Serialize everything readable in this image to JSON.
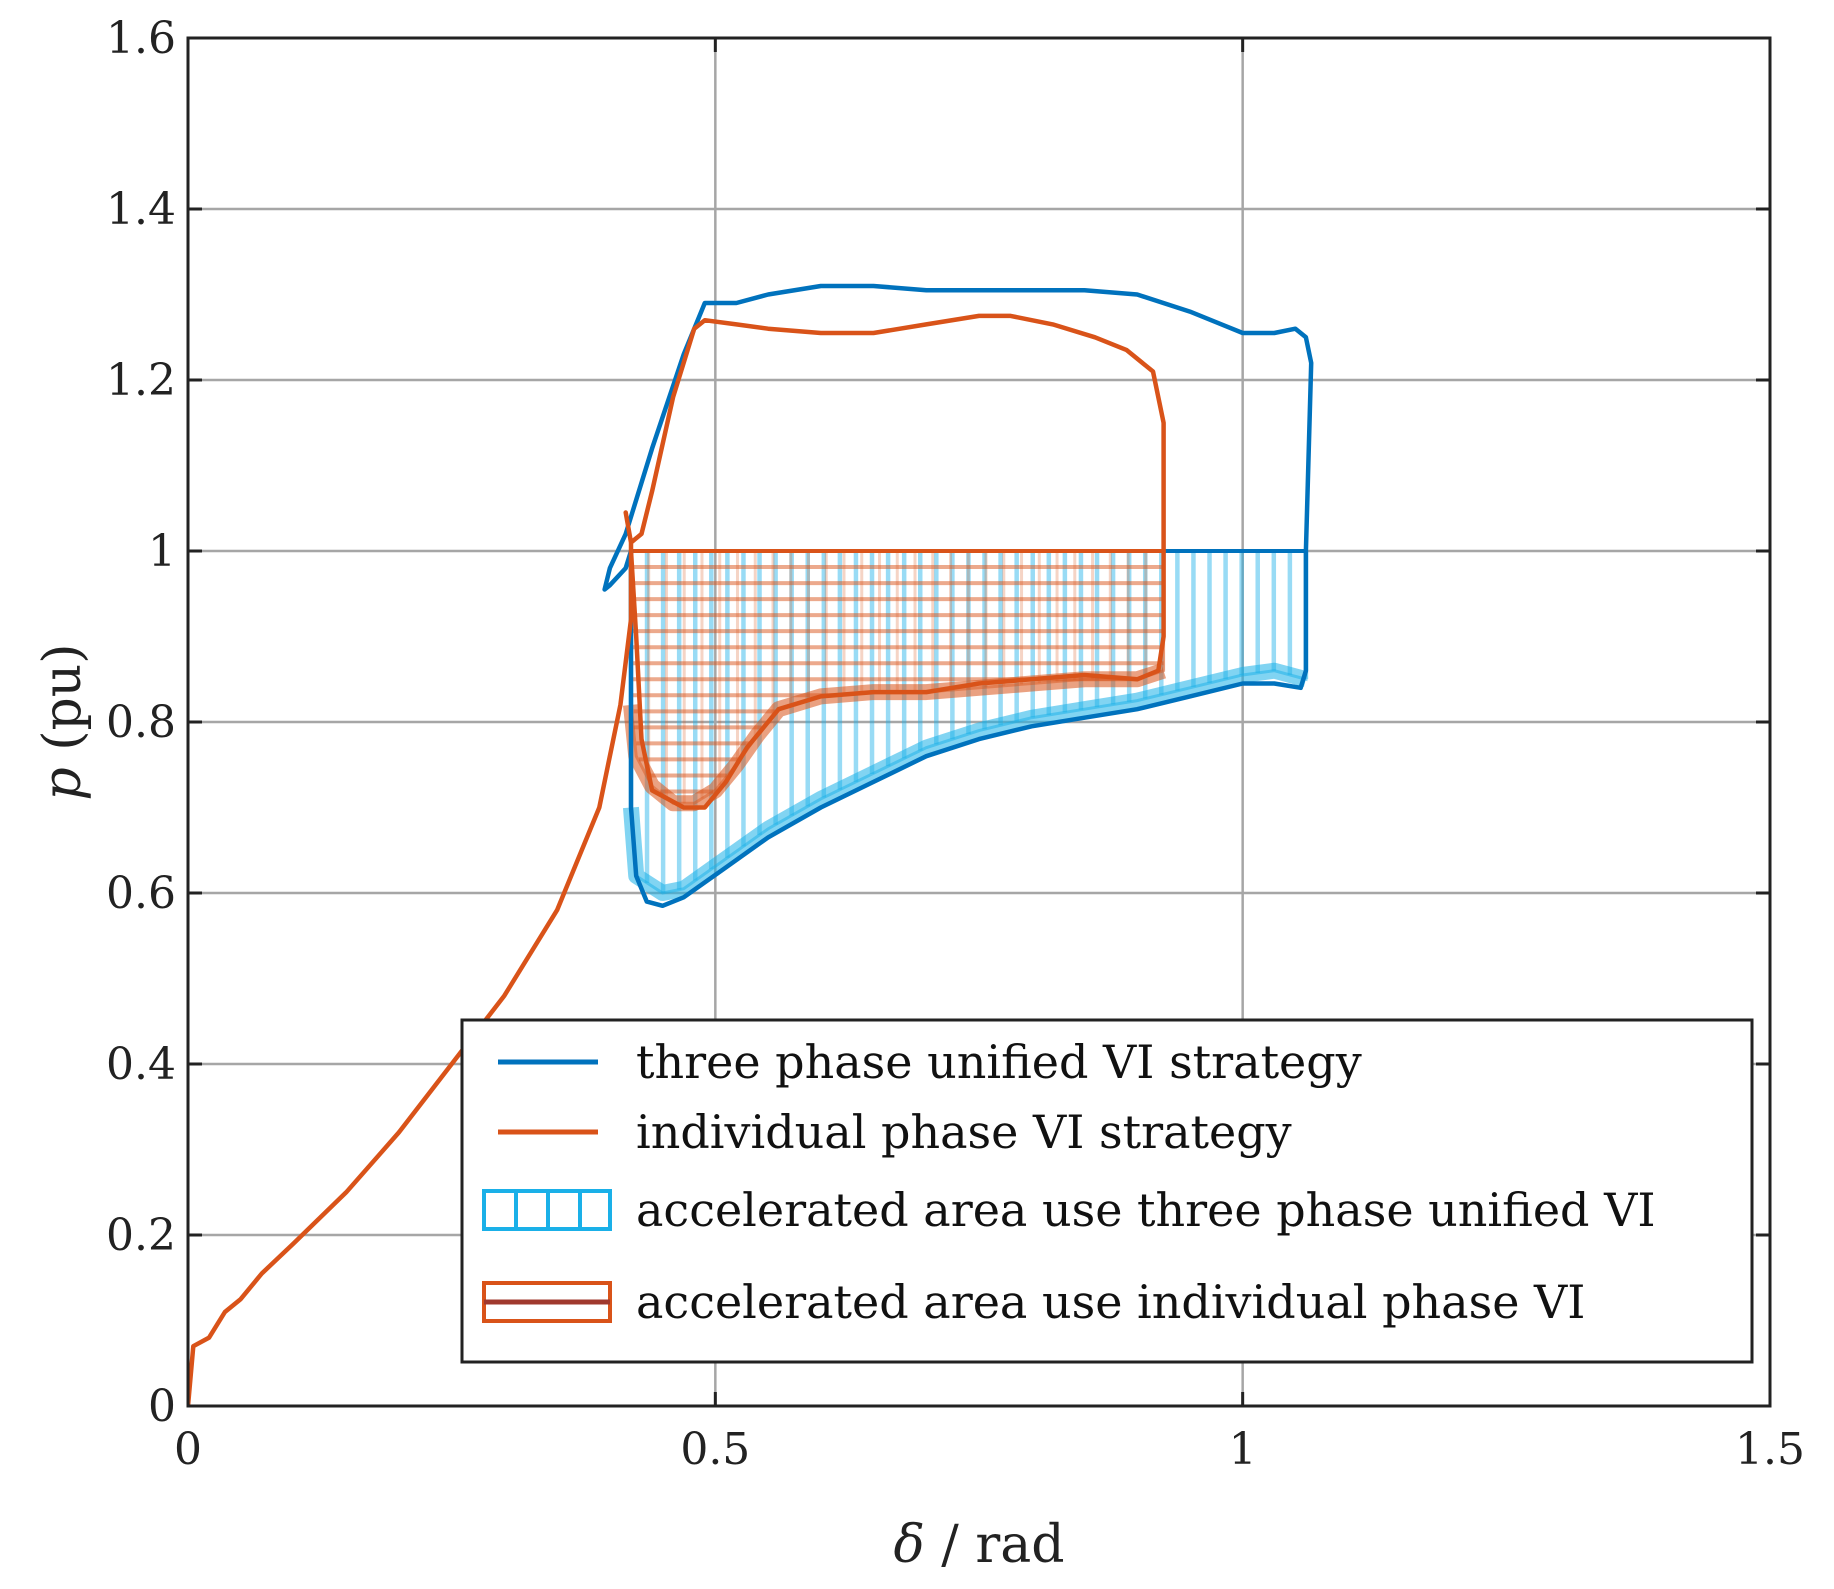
{
  "chart_data": {
    "type": "line",
    "title": "",
    "xlabel_symbol": "δ",
    "xlabel_unit": " / rad",
    "ylabel_symbol": "p",
    "ylabel_unit": " (pu)",
    "xlim": [
      0,
      1.5
    ],
    "ylim": [
      0,
      1.6
    ],
    "grid": true,
    "xticks": [
      0,
      0.5,
      1,
      1.5
    ],
    "xtick_labels": [
      "0",
      "0.5",
      "1",
      "1.5"
    ],
    "yticks": [
      0,
      0.2,
      0.4,
      0.6,
      0.8,
      1,
      1.2,
      1.4,
      1.6
    ],
    "ytick_labels": [
      "0",
      "0.2",
      "0.4",
      "0.6",
      "0.8",
      "1",
      "1.2",
      "1.4",
      "1.6"
    ],
    "legend_position": "bottom-right",
    "series": [
      {
        "name": "three phase unified VI strategy",
        "color": "#0072BD",
        "points": [
          [
            0.42,
            1.0
          ],
          [
            0.415,
            0.98
          ],
          [
            0.4,
            0.96
          ],
          [
            0.395,
            0.955
          ],
          [
            0.4,
            0.98
          ],
          [
            0.415,
            1.02
          ],
          [
            0.44,
            1.12
          ],
          [
            0.47,
            1.23
          ],
          [
            0.49,
            1.29
          ],
          [
            0.52,
            1.29
          ],
          [
            0.55,
            1.3
          ],
          [
            0.6,
            1.31
          ],
          [
            0.65,
            1.31
          ],
          [
            0.7,
            1.305
          ],
          [
            0.75,
            1.305
          ],
          [
            0.8,
            1.305
          ],
          [
            0.85,
            1.305
          ],
          [
            0.9,
            1.3
          ],
          [
            0.95,
            1.28
          ],
          [
            0.98,
            1.265
          ],
          [
            1.0,
            1.255
          ],
          [
            1.03,
            1.255
          ],
          [
            1.05,
            1.26
          ],
          [
            1.06,
            1.25
          ],
          [
            1.065,
            1.22
          ],
          [
            1.06,
            1.0
          ],
          [
            1.06,
            0.9
          ],
          [
            1.06,
            0.86
          ],
          [
            1.055,
            0.84
          ],
          [
            1.03,
            0.845
          ],
          [
            1.0,
            0.845
          ],
          [
            0.95,
            0.83
          ],
          [
            0.9,
            0.815
          ],
          [
            0.85,
            0.805
          ],
          [
            0.8,
            0.795
          ],
          [
            0.75,
            0.78
          ],
          [
            0.7,
            0.76
          ],
          [
            0.65,
            0.73
          ],
          [
            0.6,
            0.7
          ],
          [
            0.55,
            0.665
          ],
          [
            0.51,
            0.63
          ],
          [
            0.47,
            0.595
          ],
          [
            0.45,
            0.585
          ],
          [
            0.435,
            0.59
          ],
          [
            0.425,
            0.62
          ],
          [
            0.42,
            0.7
          ],
          [
            0.42,
            0.85
          ],
          [
            0.42,
            1.0
          ]
        ]
      },
      {
        "name": "individual phase VI strategy",
        "color": "#D95319",
        "points": [
          [
            0,
            0
          ],
          [
            0.005,
            0.07
          ],
          [
            0.02,
            0.08
          ],
          [
            0.035,
            0.11
          ],
          [
            0.05,
            0.125
          ],
          [
            0.07,
            0.155
          ],
          [
            0.1,
            0.19
          ],
          [
            0.15,
            0.25
          ],
          [
            0.2,
            0.32
          ],
          [
            0.25,
            0.4
          ],
          [
            0.3,
            0.48
          ],
          [
            0.35,
            0.58
          ],
          [
            0.39,
            0.7
          ],
          [
            0.41,
            0.82
          ],
          [
            0.42,
            0.92
          ],
          [
            0.42,
            1.01
          ],
          [
            0.415,
            1.045
          ],
          [
            0.42,
            1.01
          ],
          [
            0.43,
            1.02
          ],
          [
            0.44,
            1.07
          ],
          [
            0.46,
            1.18
          ],
          [
            0.48,
            1.26
          ],
          [
            0.49,
            1.27
          ],
          [
            0.52,
            1.265
          ],
          [
            0.55,
            1.26
          ],
          [
            0.6,
            1.255
          ],
          [
            0.65,
            1.255
          ],
          [
            0.7,
            1.265
          ],
          [
            0.75,
            1.275
          ],
          [
            0.78,
            1.275
          ],
          [
            0.82,
            1.265
          ],
          [
            0.86,
            1.25
          ],
          [
            0.89,
            1.235
          ],
          [
            0.915,
            1.21
          ],
          [
            0.925,
            1.15
          ],
          [
            0.925,
            1.0
          ],
          [
            0.925,
            0.9
          ],
          [
            0.92,
            0.86
          ],
          [
            0.9,
            0.85
          ],
          [
            0.85,
            0.855
          ],
          [
            0.8,
            0.85
          ],
          [
            0.75,
            0.845
          ],
          [
            0.7,
            0.835
          ],
          [
            0.65,
            0.835
          ],
          [
            0.6,
            0.83
          ],
          [
            0.56,
            0.815
          ],
          [
            0.53,
            0.77
          ],
          [
            0.51,
            0.73
          ],
          [
            0.49,
            0.7
          ],
          [
            0.47,
            0.7
          ],
          [
            0.44,
            0.72
          ],
          [
            0.43,
            0.78
          ],
          [
            0.425,
            0.9
          ],
          [
            0.42,
            1.0
          ]
        ]
      }
    ],
    "areas": [
      {
        "name": "accelerated area use three phase unified VI",
        "color": "#1AB0E8",
        "hatch": "vertical",
        "top": 1.0,
        "x_range": [
          0.42,
          1.06
        ],
        "bottom": [
          [
            0.42,
            0.7
          ],
          [
            0.425,
            0.62
          ],
          [
            0.45,
            0.6
          ],
          [
            0.47,
            0.605
          ],
          [
            0.51,
            0.64
          ],
          [
            0.55,
            0.675
          ],
          [
            0.6,
            0.71
          ],
          [
            0.65,
            0.74
          ],
          [
            0.7,
            0.77
          ],
          [
            0.75,
            0.79
          ],
          [
            0.8,
            0.805
          ],
          [
            0.85,
            0.815
          ],
          [
            0.9,
            0.825
          ],
          [
            0.95,
            0.84
          ],
          [
            1.0,
            0.855
          ],
          [
            1.03,
            0.86
          ],
          [
            1.06,
            0.85
          ]
        ]
      },
      {
        "name": "accelerated area use individual phase VI",
        "color": "#D95319",
        "hatch": "horizontal",
        "top": 1.0,
        "x_range": [
          0.42,
          0.925
        ],
        "bottom": [
          [
            0.42,
            0.82
          ],
          [
            0.425,
            0.76
          ],
          [
            0.44,
            0.725
          ],
          [
            0.46,
            0.705
          ],
          [
            0.48,
            0.705
          ],
          [
            0.5,
            0.72
          ],
          [
            0.52,
            0.75
          ],
          [
            0.54,
            0.785
          ],
          [
            0.56,
            0.815
          ],
          [
            0.6,
            0.83
          ],
          [
            0.65,
            0.835
          ],
          [
            0.7,
            0.835
          ],
          [
            0.75,
            0.84
          ],
          [
            0.8,
            0.845
          ],
          [
            0.85,
            0.85
          ],
          [
            0.9,
            0.85
          ],
          [
            0.925,
            0.86
          ]
        ]
      }
    ],
    "legend": [
      {
        "label": "three phase unified VI strategy",
        "kind": "line",
        "color": "#0072BD"
      },
      {
        "label": "individual phase VI strategy",
        "kind": "line",
        "color": "#D95319"
      },
      {
        "label": "accelerated area use three phase unified VI",
        "kind": "patch-vertical",
        "color": "#1AB0E8"
      },
      {
        "label": "accelerated area use individual phase VI",
        "kind": "patch-horizontal",
        "color": "#D95319"
      }
    ]
  }
}
